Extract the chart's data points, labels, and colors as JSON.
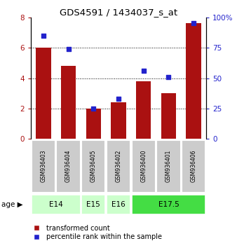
{
  "title": "GDS4591 / 1434037_s_at",
  "samples": [
    "GSM936403",
    "GSM936404",
    "GSM936405",
    "GSM936402",
    "GSM936400",
    "GSM936401",
    "GSM936406"
  ],
  "bar_values": [
    6.0,
    4.8,
    2.0,
    2.4,
    3.8,
    3.0,
    7.6
  ],
  "dot_values": [
    85,
    74,
    25,
    33,
    56,
    51,
    95
  ],
  "bar_color": "#aa1111",
  "dot_color": "#2222cc",
  "ylim_left": [
    0,
    8
  ],
  "ylim_right": [
    0,
    100
  ],
  "yticks_left": [
    0,
    2,
    4,
    6,
    8
  ],
  "yticks_right": [
    0,
    25,
    50,
    75,
    100
  ],
  "ytick_labels_right": [
    "0",
    "25",
    "50",
    "75",
    "100%"
  ],
  "legend_bar_label": "transformed count",
  "legend_dot_label": "percentile rank within the sample",
  "sample_box_color": "#cccccc",
  "bar_width": 0.6,
  "age_groups": [
    {
      "label": "E14",
      "indices": [
        0,
        1
      ],
      "color": "#ccffcc"
    },
    {
      "label": "E15",
      "indices": [
        2
      ],
      "color": "#ccffcc"
    },
    {
      "label": "E16",
      "indices": [
        3
      ],
      "color": "#ccffcc"
    },
    {
      "label": "E17.5",
      "indices": [
        4,
        5,
        6
      ],
      "color": "#44dd44"
    }
  ]
}
